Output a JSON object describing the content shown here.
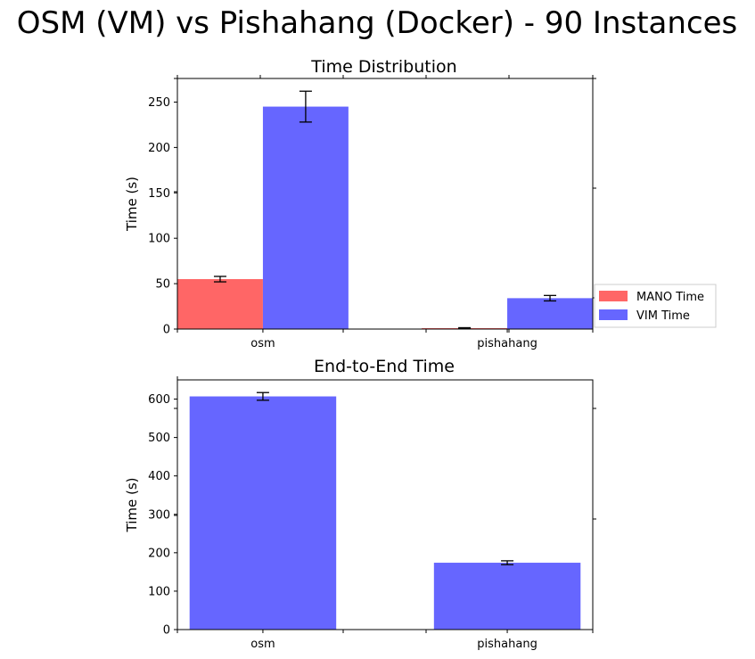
{
  "figure": {
    "title": "OSM (VM) vs Pishahang (Docker) - 90 Instances"
  },
  "chart_data": [
    {
      "type": "bar",
      "title": "Time Distribution",
      "xlabel": "",
      "ylabel": "Time (s)",
      "categories": [
        "osm",
        "pishahang"
      ],
      "ylim": [
        0,
        276
      ],
      "yticks": [
        0,
        50,
        100,
        150,
        200,
        250
      ],
      "grid": false,
      "legend": "right",
      "series": [
        {
          "name": "MANO Time",
          "color": "#ff6666",
          "values": [
            55,
            1
          ],
          "errors": [
            3,
            0.5
          ]
        },
        {
          "name": "VIM Time",
          "color": "#6666ff",
          "values": [
            245,
            34
          ],
          "errors": [
            17,
            3
          ]
        }
      ]
    },
    {
      "type": "bar",
      "title": "End-to-End Time",
      "xlabel": "",
      "ylabel": "Time (s)",
      "categories": [
        "osm",
        "pishahang"
      ],
      "ylim": [
        0,
        650
      ],
      "yticks": [
        0,
        100,
        200,
        300,
        400,
        500,
        600
      ],
      "grid": false,
      "series": [
        {
          "name": "",
          "color": "#6666ff",
          "values": [
            607,
            174
          ],
          "errors": [
            10,
            5
          ]
        }
      ]
    }
  ]
}
